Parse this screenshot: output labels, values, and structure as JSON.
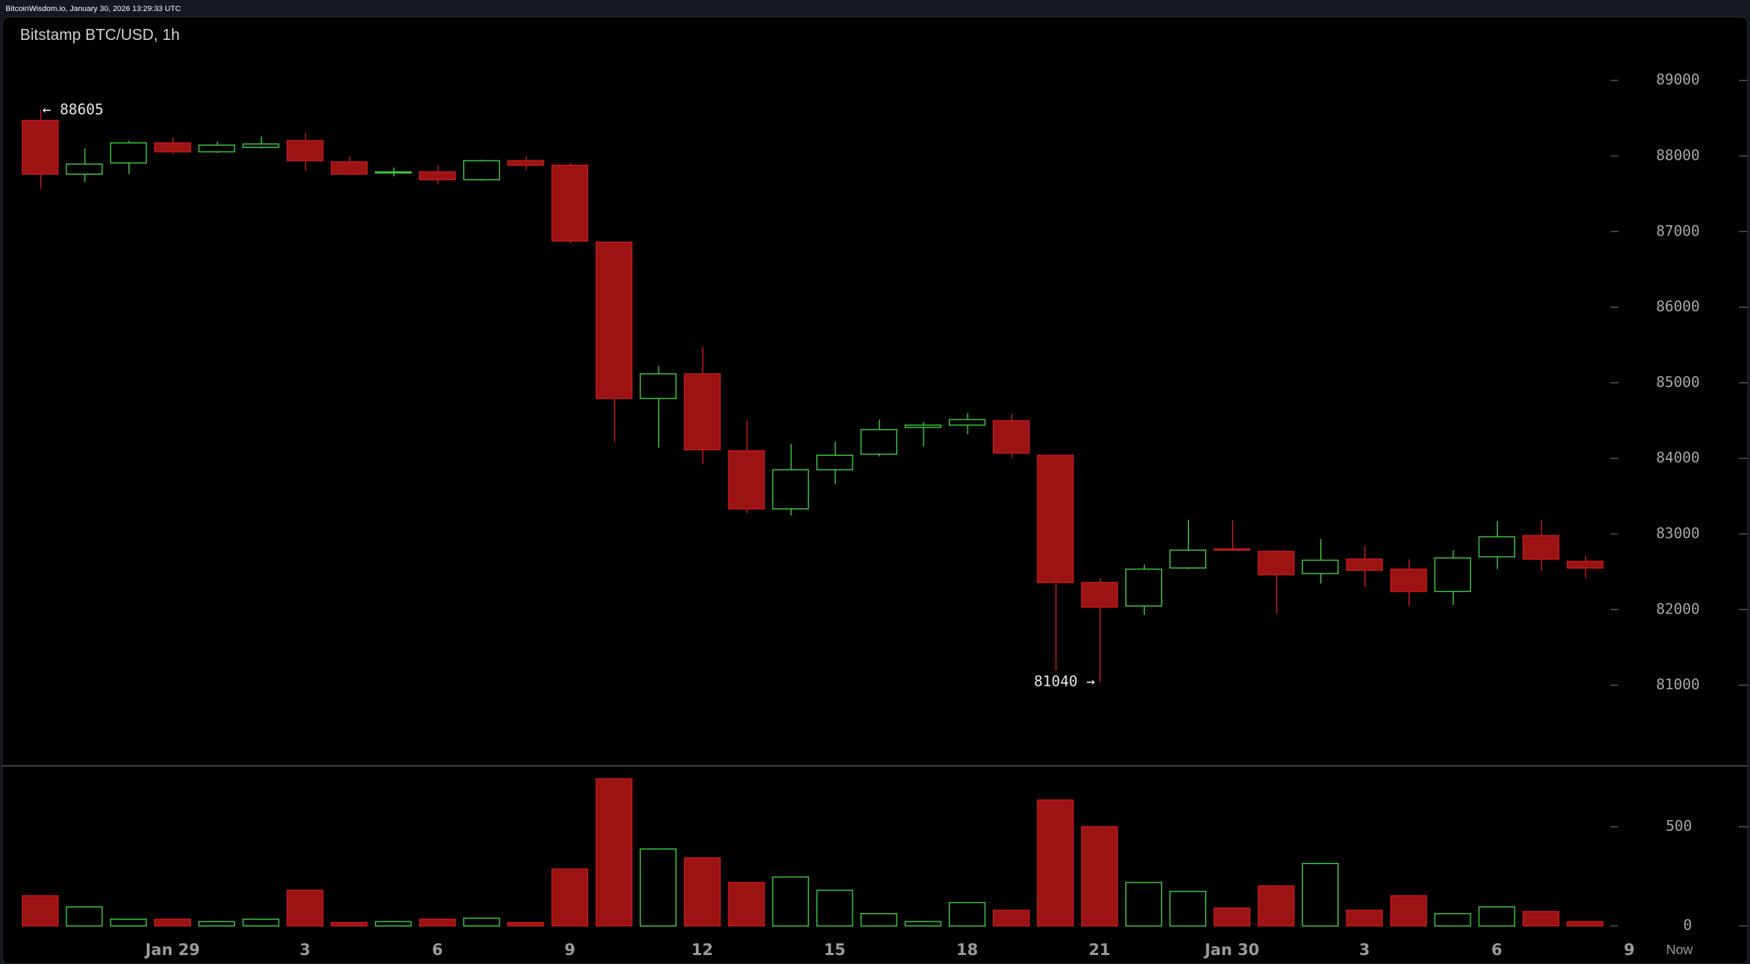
{
  "header": "BitcoinWisdom.io, January 30, 2026 13:29:33 UTC",
  "chart_data": {
    "type": "candlestick",
    "title": "Bitstamp BTC/USD, 1h",
    "categories": [
      null,
      null,
      null,
      "Jan 29",
      null,
      null,
      "3",
      null,
      null,
      "6",
      null,
      null,
      "9",
      null,
      null,
      "12",
      null,
      null,
      "15",
      null,
      null,
      "18",
      null,
      null,
      "21",
      null,
      null,
      "Jan 30",
      null,
      null,
      "3",
      null,
      null,
      "6",
      null,
      null
    ],
    "trailing_x_labels": [
      "9",
      "Now"
    ],
    "open": [
      88470,
      87760,
      87908,
      88173,
      88055,
      88114,
      88203,
      87922,
      87775,
      87790,
      87686,
      87937,
      87878,
      86860,
      84793,
      85118,
      84100,
      83332,
      83849,
      84056,
      84410,
      84440,
      84498,
      84041,
      82358,
      82048,
      82550,
      82801,
      82771,
      82476,
      82668,
      82535,
      82240,
      82698,
      82978,
      82638
    ],
    "high": [
      88605,
      88100,
      88203,
      88247,
      88189,
      88262,
      88306,
      87996,
      87848,
      87878,
      87952,
      87996,
      87908,
      86860,
      85221,
      85472,
      84498,
      84188,
      84218,
      84513,
      84484,
      84601,
      84587,
      84041,
      82417,
      82594,
      83185,
      83185,
      82786,
      82934,
      82830,
      82668,
      82786,
      83170,
      83185,
      82712
    ],
    "low": [
      87568,
      87657,
      87760,
      88026,
      88041,
      88100,
      87804,
      87745,
      87730,
      87627,
      87672,
      87819,
      86845,
      84218,
      84144,
      83922,
      83273,
      83244,
      83657,
      84026,
      84159,
      84321,
      84011,
      81192,
      81040,
      81930,
      82535,
      82786,
      81945,
      82343,
      82299,
      82048,
      82063,
      82535,
      82520,
      82417
    ],
    "close": [
      87760,
      87893,
      88173,
      88055,
      88144,
      88159,
      87937,
      87760,
      87790,
      87686,
      87937,
      87878,
      86875,
      84793,
      85118,
      84114,
      83332,
      83849,
      84041,
      84381,
      84440,
      84513,
      84070,
      82358,
      82033,
      82535,
      82786,
      82786,
      82461,
      82653,
      82520,
      82240,
      82683,
      82963,
      82668,
      82550
    ],
    "volume": [
      152,
      96,
      34,
      34,
      22,
      34,
      180,
      17,
      22,
      34,
      39,
      17,
      287,
      742,
      388,
      343,
      219,
      247,
      180,
      62,
      22,
      118,
      79,
      635,
      500,
      219,
      174,
      90,
      202,
      315,
      79,
      152,
      62,
      96,
      73,
      22
    ],
    "up_color": "#3ec43e",
    "down_color": "#c41a1a",
    "ylim": [
      79940,
      89840
    ],
    "yticks": [
      81000,
      82000,
      83000,
      84000,
      85000,
      86000,
      87000,
      88000,
      89000
    ],
    "volume_lim": [
      0,
      810
    ],
    "volume_ticks": [
      0,
      500
    ],
    "annotations": {
      "high": {
        "value": 88605,
        "label": "← 88605"
      },
      "low": {
        "value": 81040,
        "label": "81040 →"
      }
    }
  }
}
